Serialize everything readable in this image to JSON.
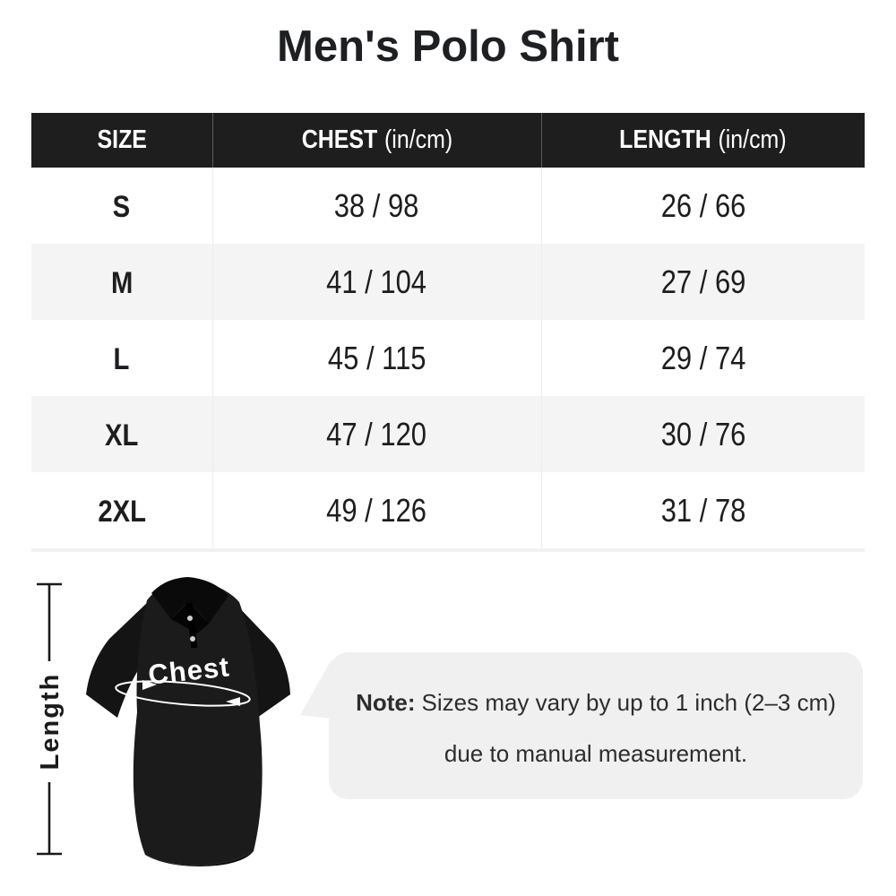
{
  "page": {
    "title": "Men's Polo Shirt"
  },
  "colors": {
    "header_bg": "#1e1e1e",
    "header_text": "#ffffff",
    "alt_row_bg": "#f4f4f4",
    "bubble_bg": "#f0f0f0",
    "text": "#1d1d1f"
  },
  "table": {
    "columns": [
      {
        "label": "SIZE",
        "unit": ""
      },
      {
        "label": "CHEST",
        "unit": "(in/cm)"
      },
      {
        "label": "LENGTH",
        "unit": "(in/cm)"
      }
    ],
    "rows": [
      {
        "size": "S",
        "chest": "38 / 98",
        "length": "26 / 66"
      },
      {
        "size": "M",
        "chest": "41 / 104",
        "length": "27 / 69"
      },
      {
        "size": "L",
        "chest": "45 / 115",
        "length": "29 / 74"
      },
      {
        "size": "XL",
        "chest": "47 / 120",
        "length": "30 / 76"
      },
      {
        "size": "2XL",
        "chest": "49 / 126",
        "length": "31 / 78"
      }
    ]
  },
  "diagram": {
    "chest_label": "Chest",
    "length_label": "Length"
  },
  "note": {
    "prefix": "Note:",
    "line1": "Sizes may vary by up to 1 inch (2–3 cm)",
    "line2": "due to manual measurement."
  }
}
